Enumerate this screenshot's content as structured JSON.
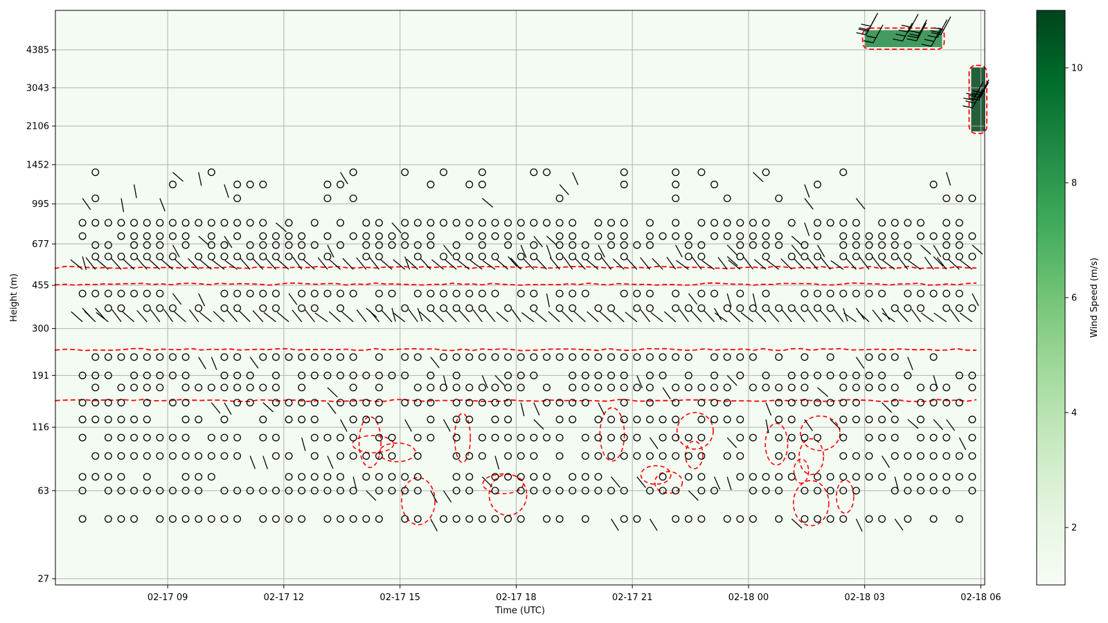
{
  "chart_data": {
    "type": "heatmap",
    "title": "",
    "xlabel": "Time (UTC)",
    "ylabel": "Height (m)",
    "x_ticks": [
      "02-17 09",
      "02-17 12",
      "02-17 15",
      "02-17 18",
      "02-17 21",
      "02-18 00",
      "02-18 03",
      "02-18 06"
    ],
    "y_ticks": [
      "27",
      "63",
      "116",
      "191",
      "300",
      "455",
      "677",
      "995",
      "1452",
      "2106",
      "3043",
      "4385"
    ],
    "y_scale": "log",
    "grid": true,
    "colorbar": {
      "label": "Wind Speed (m/s)",
      "ticks": [
        "2",
        "4",
        "6",
        "8",
        "10"
      ],
      "range": [
        1,
        11
      ],
      "colormap": "Greens"
    },
    "colors": {
      "background_fill": "#f4fbf2",
      "contour": "#ff0000",
      "barb": "#000000",
      "grid": "#b0b0b0"
    },
    "overlays": [
      "wind barbs",
      "calm circles",
      "red dashed contours"
    ],
    "high_speed_regions": [
      {
        "time_range": [
          "02-18 03",
          "02-18 05"
        ],
        "height_range_m": [
          4500,
          5300
        ],
        "speed_ms": 9
      },
      {
        "time_range": [
          "02-18 05:45",
          "02-18 07"
        ],
        "height_range_m": [
          2000,
          3700
        ],
        "speed_ms": 11
      }
    ]
  }
}
